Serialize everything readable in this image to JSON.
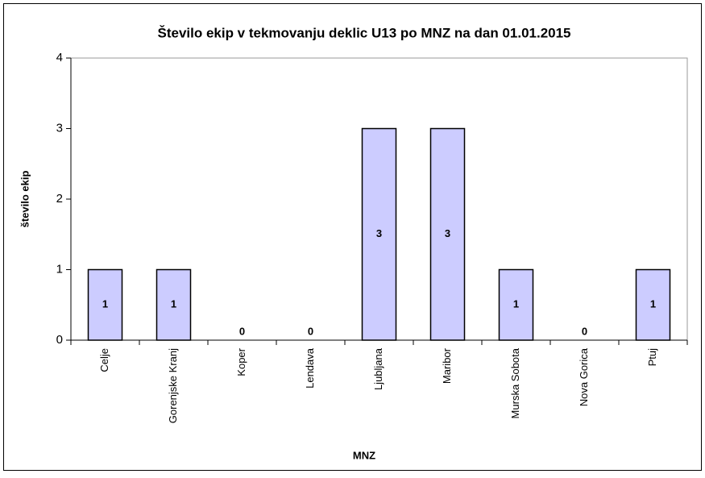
{
  "chart_data": {
    "type": "bar",
    "title": "Število ekip v tekmovanju deklic U13 po MNZ na dan 01.01.2015",
    "x_label": "MNZ",
    "y_label": "število ekip",
    "categories": [
      "Celje",
      "Gorenjske Kranj",
      "Koper",
      "Lendava",
      "Ljubljana",
      "Maribor",
      "Murska Sobota",
      "Nova Gorica",
      "Ptuj"
    ],
    "values": [
      1,
      1,
      0,
      0,
      3,
      3,
      1,
      0,
      1
    ],
    "color": "#ccccff",
    "ylim": [
      0,
      4
    ],
    "yticks": [
      0,
      1,
      2,
      3,
      4
    ],
    "grid": false
  }
}
